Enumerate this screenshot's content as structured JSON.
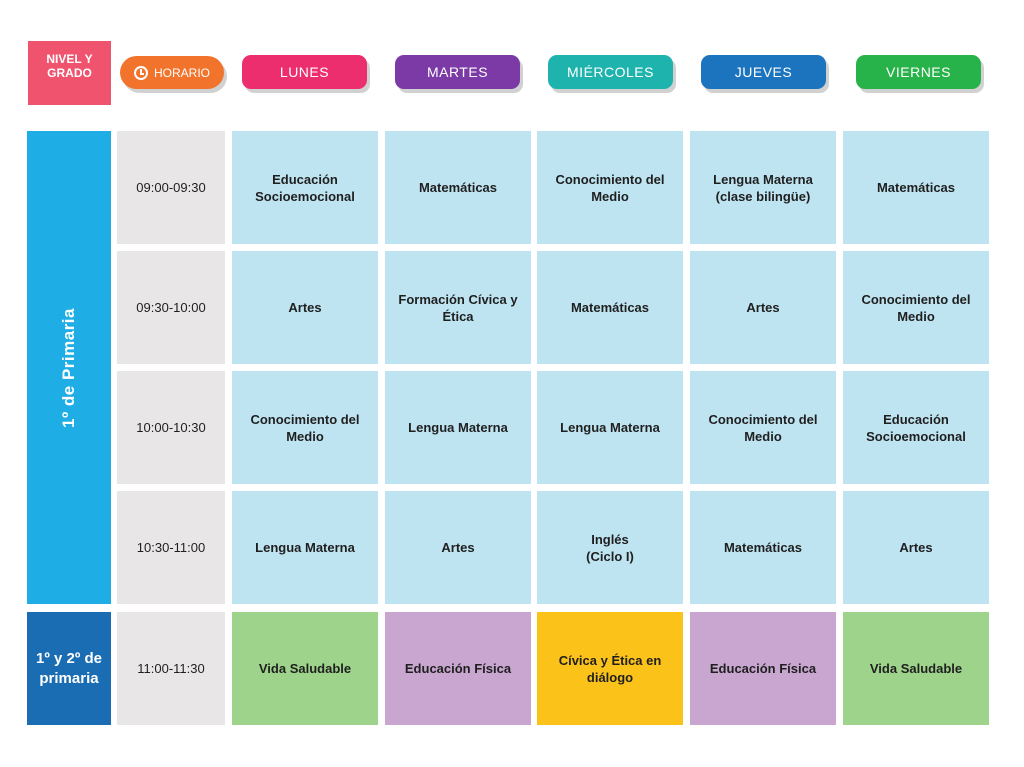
{
  "header": {
    "level_label": "NIVEL Y\nGRADO",
    "horario_label": "HORARIO",
    "clock_icon": "clock-icon",
    "colors": {
      "level_label": "#f0536e",
      "horario": "#f2732b"
    }
  },
  "days": [
    {
      "label": "LUNES",
      "color": "#ec2e6e"
    },
    {
      "label": "MARTES",
      "color": "#7b3aa5"
    },
    {
      "label": "MIÉRCOLES",
      "color": "#1fb3ad"
    },
    {
      "label": "JUEVES",
      "color": "#1c74bf"
    },
    {
      "label": "VIERNES",
      "color": "#27b24a"
    }
  ],
  "levels": [
    {
      "label": "1º de Primaria",
      "color": "#1eaee5"
    },
    {
      "label": "1º y 2º de\nprimaria",
      "color": "#1b6db3"
    }
  ],
  "rows": [
    {
      "time": "09:00-09:30",
      "cells": [
        {
          "text": "Educación\nSocioemocional",
          "color": "#bfe4f1"
        },
        {
          "text": "Matemáticas",
          "color": "#bfe4f1"
        },
        {
          "text": "Conocimiento del\nMedio",
          "color": "#bfe4f1"
        },
        {
          "text": "Lengua Materna\n(clase bilingüe)",
          "color": "#bfe4f1"
        },
        {
          "text": "Matemáticas",
          "color": "#bfe4f1"
        }
      ]
    },
    {
      "time": "09:30-10:00",
      "cells": [
        {
          "text": "Artes",
          "color": "#bfe4f1"
        },
        {
          "text": "Formación Cívica y\nÉtica",
          "color": "#bfe4f1"
        },
        {
          "text": "Matemáticas",
          "color": "#bfe4f1"
        },
        {
          "text": "Artes",
          "color": "#bfe4f1"
        },
        {
          "text": "Conocimiento del\nMedio",
          "color": "#bfe4f1"
        }
      ]
    },
    {
      "time": "10:00-10:30",
      "cells": [
        {
          "text": "Conocimiento del\nMedio",
          "color": "#bfe4f1"
        },
        {
          "text": "Lengua Materna",
          "color": "#bfe4f1"
        },
        {
          "text": "Lengua Materna",
          "color": "#bfe4f1"
        },
        {
          "text": "Conocimiento del\nMedio",
          "color": "#bfe4f1"
        },
        {
          "text": "Educación\nSocioemocional",
          "color": "#bfe4f1"
        }
      ]
    },
    {
      "time": "10:30-11:00",
      "cells": [
        {
          "text": "Lengua Materna",
          "color": "#bfe4f1"
        },
        {
          "text": "Artes",
          "color": "#bfe4f1"
        },
        {
          "text": "Inglés\n(Ciclo I)",
          "color": "#bfe4f1"
        },
        {
          "text": "Matemáticas",
          "color": "#bfe4f1"
        },
        {
          "text": "Artes",
          "color": "#bfe4f1"
        }
      ]
    },
    {
      "time": "11:00-11:30",
      "cells": [
        {
          "text": "Vida Saludable",
          "color": "#9dd38a"
        },
        {
          "text": "Educación Física",
          "color": "#c8a6d0"
        },
        {
          "text": "Cívica y Ética en\ndiálogo",
          "color": "#fbc31a"
        },
        {
          "text": "Educación Física",
          "color": "#c8a6d0"
        },
        {
          "text": "Vida Saludable",
          "color": "#9dd38a"
        }
      ]
    }
  ]
}
